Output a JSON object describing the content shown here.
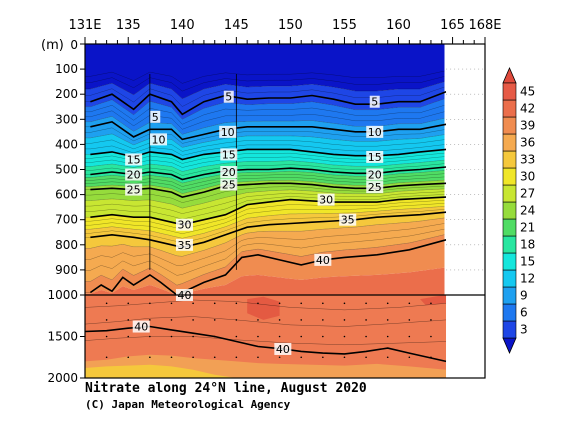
{
  "chart_data": {
    "type": "heatmap",
    "title": "Nitrate along 24°N line, August 2020",
    "credit": "(C) Japan Meteorological Agency",
    "x_ticks": [
      "131E",
      "135",
      "140",
      "145",
      "150",
      "155",
      "160",
      "165",
      "168E"
    ],
    "x_tick_values": [
      131,
      135,
      140,
      145,
      150,
      155,
      160,
      165,
      168
    ],
    "x_range": [
      131,
      168
    ],
    "y_unit": "(m)",
    "y_ticks_upper": [
      "0",
      "100",
      "200",
      "300",
      "400",
      "500",
      "600",
      "700",
      "800",
      "900",
      "1000"
    ],
    "y_tick_values_upper": [
      0,
      100,
      200,
      300,
      400,
      500,
      600,
      700,
      800,
      900,
      1000
    ],
    "y_ticks_lower": [
      "1500",
      "2000"
    ],
    "y_tick_values_lower": [
      1500,
      2000
    ],
    "y_range": [
      0,
      2000
    ],
    "y_break": 1000,
    "data_extent_lon": 164.4,
    "colorbar": {
      "levels": [
        "3",
        "6",
        "9",
        "12",
        "15",
        "18",
        "21",
        "24",
        "27",
        "30",
        "33",
        "36",
        "39",
        "42",
        "45"
      ],
      "colors": [
        "#1e46e6",
        "#1e78f0",
        "#1ea0f0",
        "#14c8f0",
        "#14e6dc",
        "#28e6a0",
        "#50dc64",
        "#96dc3c",
        "#c8e632",
        "#f0e628",
        "#f5c83c",
        "#f5aa50",
        "#f08c50",
        "#eb6e4b",
        "#e65a46"
      ],
      "under_color": "#0a14c8",
      "over_color": "#e04a3c"
    },
    "contour_labels_upper": [
      {
        "text": "5",
        "lon": 137.5,
        "depth": 290
      },
      {
        "text": "5",
        "lon": 144.3,
        "depth": 210
      },
      {
        "text": "5",
        "lon": 157.8,
        "depth": 230
      },
      {
        "text": "10",
        "lon": 137.8,
        "depth": 380
      },
      {
        "text": "10",
        "lon": 144.2,
        "depth": 350
      },
      {
        "text": "10",
        "lon": 157.8,
        "depth": 350
      },
      {
        "text": "15",
        "lon": 135.5,
        "depth": 460
      },
      {
        "text": "15",
        "lon": 144.3,
        "depth": 440
      },
      {
        "text": "15",
        "lon": 157.8,
        "depth": 450
      },
      {
        "text": "20",
        "lon": 135.5,
        "depth": 520
      },
      {
        "text": "20",
        "lon": 144.3,
        "depth": 510
      },
      {
        "text": "20",
        "lon": 157.8,
        "depth": 520
      },
      {
        "text": "25",
        "lon": 135.5,
        "depth": 580
      },
      {
        "text": "25",
        "lon": 144.3,
        "depth": 560
      },
      {
        "text": "25",
        "lon": 157.8,
        "depth": 570
      },
      {
        "text": "30",
        "lon": 140.2,
        "depth": 720
      },
      {
        "text": "30",
        "lon": 153.3,
        "depth": 620
      },
      {
        "text": "35",
        "lon": 140.2,
        "depth": 800
      },
      {
        "text": "35",
        "lon": 155.3,
        "depth": 700
      },
      {
        "text": "40",
        "lon": 153.0,
        "depth": 860
      },
      {
        "text": "40",
        "lon": 140.2,
        "depth": 1000
      }
    ],
    "contour_labels_lower": [
      {
        "text": "40",
        "lon": 136.2,
        "depth": 1380
      },
      {
        "text": "40",
        "lon": 149.3,
        "depth": 1650
      }
    ],
    "isolines": [
      {
        "level": 5,
        "depths": [
          {
            "lon": 131.5,
            "depth": 230
          },
          {
            "lon": 133.5,
            "depth": 200
          },
          {
            "lon": 135.5,
            "depth": 260
          },
          {
            "lon": 137,
            "depth": 200
          },
          {
            "lon": 139,
            "depth": 230
          },
          {
            "lon": 140,
            "depth": 280
          },
          {
            "lon": 142,
            "depth": 230
          },
          {
            "lon": 144,
            "depth": 205
          },
          {
            "lon": 146,
            "depth": 220
          },
          {
            "lon": 148,
            "depth": 215
          },
          {
            "lon": 150,
            "depth": 215
          },
          {
            "lon": 152,
            "depth": 205
          },
          {
            "lon": 154,
            "depth": 220
          },
          {
            "lon": 156,
            "depth": 240
          },
          {
            "lon": 158,
            "depth": 240
          },
          {
            "lon": 160,
            "depth": 230
          },
          {
            "lon": 162,
            "depth": 230
          },
          {
            "lon": 164.4,
            "depth": 190
          }
        ]
      },
      {
        "level": 10,
        "depths": [
          {
            "lon": 131.5,
            "depth": 330
          },
          {
            "lon": 133.5,
            "depth": 310
          },
          {
            "lon": 135.5,
            "depth": 370
          },
          {
            "lon": 137,
            "depth": 340
          },
          {
            "lon": 139,
            "depth": 340
          },
          {
            "lon": 140,
            "depth": 380
          },
          {
            "lon": 142,
            "depth": 360
          },
          {
            "lon": 144,
            "depth": 340
          },
          {
            "lon": 146,
            "depth": 330
          },
          {
            "lon": 148,
            "depth": 330
          },
          {
            "lon": 150,
            "depth": 330
          },
          {
            "lon": 152,
            "depth": 330
          },
          {
            "lon": 154,
            "depth": 340
          },
          {
            "lon": 156,
            "depth": 350
          },
          {
            "lon": 158,
            "depth": 350
          },
          {
            "lon": 160,
            "depth": 340
          },
          {
            "lon": 162,
            "depth": 340
          },
          {
            "lon": 164.4,
            "depth": 320
          }
        ]
      },
      {
        "level": 15,
        "depths": [
          {
            "lon": 131.5,
            "depth": 440
          },
          {
            "lon": 133.5,
            "depth": 430
          },
          {
            "lon": 135.5,
            "depth": 450
          },
          {
            "lon": 137,
            "depth": 430
          },
          {
            "lon": 139,
            "depth": 440
          },
          {
            "lon": 140,
            "depth": 460
          },
          {
            "lon": 142,
            "depth": 440
          },
          {
            "lon": 144,
            "depth": 430
          },
          {
            "lon": 146,
            "depth": 420
          },
          {
            "lon": 148,
            "depth": 420
          },
          {
            "lon": 150,
            "depth": 420
          },
          {
            "lon": 152,
            "depth": 430
          },
          {
            "lon": 154,
            "depth": 440
          },
          {
            "lon": 156,
            "depth": 445
          },
          {
            "lon": 158,
            "depth": 445
          },
          {
            "lon": 160,
            "depth": 440
          },
          {
            "lon": 162,
            "depth": 430
          },
          {
            "lon": 164.4,
            "depth": 420
          }
        ]
      },
      {
        "level": 20,
        "depths": [
          {
            "lon": 131.5,
            "depth": 520
          },
          {
            "lon": 133.5,
            "depth": 510
          },
          {
            "lon": 135.5,
            "depth": 520
          },
          {
            "lon": 137,
            "depth": 510
          },
          {
            "lon": 139,
            "depth": 520
          },
          {
            "lon": 140,
            "depth": 540
          },
          {
            "lon": 142,
            "depth": 520
          },
          {
            "lon": 144,
            "depth": 505
          },
          {
            "lon": 146,
            "depth": 500
          },
          {
            "lon": 148,
            "depth": 500
          },
          {
            "lon": 150,
            "depth": 495
          },
          {
            "lon": 152,
            "depth": 500
          },
          {
            "lon": 154,
            "depth": 510
          },
          {
            "lon": 156,
            "depth": 515
          },
          {
            "lon": 158,
            "depth": 515
          },
          {
            "lon": 160,
            "depth": 505
          },
          {
            "lon": 162,
            "depth": 500
          },
          {
            "lon": 164.4,
            "depth": 490
          }
        ]
      },
      {
        "level": 25,
        "depths": [
          {
            "lon": 131.5,
            "depth": 580
          },
          {
            "lon": 133.5,
            "depth": 575
          },
          {
            "lon": 135.5,
            "depth": 580
          },
          {
            "lon": 137,
            "depth": 575
          },
          {
            "lon": 139,
            "depth": 590
          },
          {
            "lon": 140,
            "depth": 610
          },
          {
            "lon": 142,
            "depth": 590
          },
          {
            "lon": 144,
            "depth": 565
          },
          {
            "lon": 146,
            "depth": 560
          },
          {
            "lon": 148,
            "depth": 555
          },
          {
            "lon": 150,
            "depth": 555
          },
          {
            "lon": 152,
            "depth": 560
          },
          {
            "lon": 154,
            "depth": 570
          },
          {
            "lon": 156,
            "depth": 575
          },
          {
            "lon": 158,
            "depth": 575
          },
          {
            "lon": 160,
            "depth": 565
          },
          {
            "lon": 162,
            "depth": 560
          },
          {
            "lon": 164.4,
            "depth": 555
          }
        ]
      },
      {
        "level": 30,
        "depths": [
          {
            "lon": 131.5,
            "depth": 690
          },
          {
            "lon": 133.5,
            "depth": 680
          },
          {
            "lon": 135.5,
            "depth": 690
          },
          {
            "lon": 137,
            "depth": 690
          },
          {
            "lon": 139,
            "depth": 710
          },
          {
            "lon": 140,
            "depth": 720
          },
          {
            "lon": 142,
            "depth": 700
          },
          {
            "lon": 144,
            "depth": 680
          },
          {
            "lon": 146,
            "depth": 640
          },
          {
            "lon": 148,
            "depth": 630
          },
          {
            "lon": 150,
            "depth": 620
          },
          {
            "lon": 152,
            "depth": 625
          },
          {
            "lon": 154,
            "depth": 630
          },
          {
            "lon": 156,
            "depth": 630
          },
          {
            "lon": 158,
            "depth": 630
          },
          {
            "lon": 160,
            "depth": 620
          },
          {
            "lon": 162,
            "depth": 615
          },
          {
            "lon": 164.4,
            "depth": 610
          }
        ]
      },
      {
        "level": 35,
        "depths": [
          {
            "lon": 131.5,
            "depth": 770
          },
          {
            "lon": 133.5,
            "depth": 760
          },
          {
            "lon": 135.5,
            "depth": 770
          },
          {
            "lon": 137,
            "depth": 780
          },
          {
            "lon": 139,
            "depth": 800
          },
          {
            "lon": 140,
            "depth": 810
          },
          {
            "lon": 142,
            "depth": 790
          },
          {
            "lon": 144,
            "depth": 760
          },
          {
            "lon": 146,
            "depth": 730
          },
          {
            "lon": 148,
            "depth": 720
          },
          {
            "lon": 150,
            "depth": 715
          },
          {
            "lon": 152,
            "depth": 710
          },
          {
            "lon": 154,
            "depth": 705
          },
          {
            "lon": 156,
            "depth": 700
          },
          {
            "lon": 158,
            "depth": 690
          },
          {
            "lon": 160,
            "depth": 685
          },
          {
            "lon": 162,
            "depth": 680
          },
          {
            "lon": 164.4,
            "depth": 670
          }
        ]
      },
      {
        "level": 40,
        "depths": [
          {
            "lon": 131.5,
            "depth": 990
          },
          {
            "lon": 132.5,
            "depth": 960
          },
          {
            "lon": 133.5,
            "depth": 985
          },
          {
            "lon": 134.5,
            "depth": 930
          },
          {
            "lon": 135.5,
            "depth": 960
          },
          {
            "lon": 137,
            "depth": 920
          },
          {
            "lon": 138,
            "depth": 950
          },
          {
            "lon": 139.5,
            "depth": 1000
          },
          {
            "lon": 142,
            "depth": 950
          },
          {
            "lon": 144,
            "depth": 920
          },
          {
            "lon": 145.5,
            "depth": 850
          },
          {
            "lon": 147,
            "depth": 840
          },
          {
            "lon": 149,
            "depth": 860
          },
          {
            "lon": 151,
            "depth": 880
          },
          {
            "lon": 153,
            "depth": 860
          },
          {
            "lon": 155,
            "depth": 850
          },
          {
            "lon": 158,
            "depth": 840
          },
          {
            "lon": 161,
            "depth": 820
          },
          {
            "lon": 164.4,
            "depth": 780
          }
        ]
      }
    ]
  }
}
